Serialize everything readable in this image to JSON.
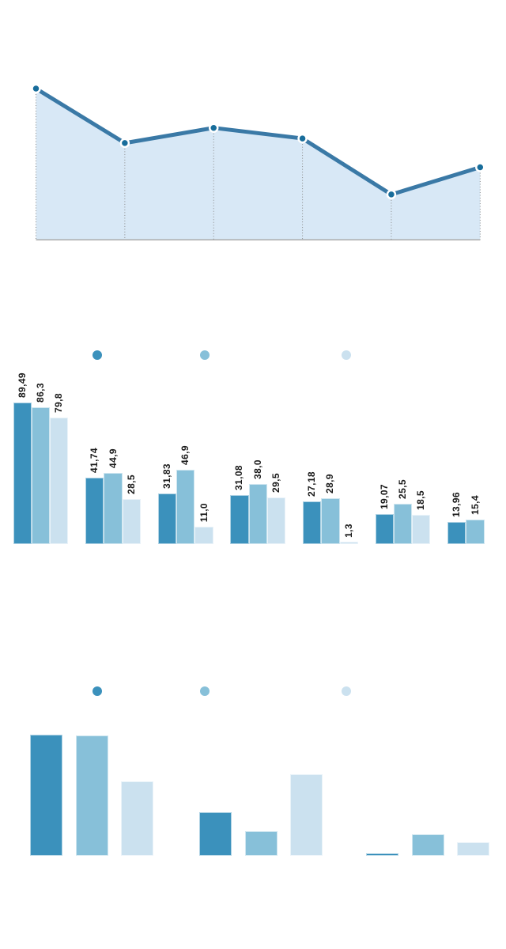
{
  "page": {
    "background": "#ffffff"
  },
  "palette": {
    "series1": "#3b91bc",
    "series2": "#87c0d9",
    "series3": "#cbe1ef",
    "area_fill": "#d8e8f6",
    "area_line": "#3a79a6",
    "marker_fill": "#186d9b",
    "marker_ring": "#ffffff",
    "drop_line": "#8a8a8a",
    "axis_line": "#ababab",
    "label_text": "#1a1a1a"
  },
  "chart_data": [
    {
      "id": "area-trend",
      "type": "area",
      "title": "",
      "xlabel": "",
      "ylabel": "",
      "x": [
        1,
        2,
        3,
        4,
        5,
        6
      ],
      "values": [
        100,
        64,
        74,
        67,
        30,
        48
      ],
      "values_estimated": true,
      "ylim": [
        0,
        100
      ],
      "grid": false,
      "axis_labels_visible": false,
      "markers": true,
      "drop_lines": "dotted"
    },
    {
      "id": "grouped-bars-labeled",
      "type": "bar",
      "title": "",
      "xlabel": "",
      "ylabel": "",
      "categories": [
        "1",
        "2",
        "3",
        "4",
        "5",
        "6",
        "7"
      ],
      "category_labels_visible": false,
      "legend_position": "top",
      "legend_text_visible": false,
      "data_labels_rotated": true,
      "ylim": [
        0,
        90
      ],
      "grid": false,
      "series": [
        {
          "name": "series-1",
          "color": "#3b91bc",
          "values": [
            89.49,
            41.74,
            31.83,
            31.08,
            27.18,
            19.07,
            13.96
          ],
          "data_labels": [
            "89,49",
            "41,74",
            "31,83",
            "31,08",
            "27,18",
            "19,07",
            "13,96"
          ]
        },
        {
          "name": "series-2",
          "color": "#87c0d9",
          "values": [
            86.3,
            44.9,
            46.9,
            38.0,
            28.9,
            25.5,
            15.4
          ],
          "data_labels": [
            "86,3",
            "44,9",
            "46,9",
            "38,0",
            "28,9",
            "25,5",
            "15,4"
          ]
        },
        {
          "name": "series-3",
          "color": "#cbe1ef",
          "values": [
            79.8,
            28.5,
            11.0,
            29.5,
            1.3,
            18.5,
            null
          ],
          "data_labels": [
            "79,8",
            "28,5",
            "11,0",
            "29,5",
            "1,3",
            "18,5",
            null
          ]
        }
      ]
    },
    {
      "id": "grouped-bars-unlabeled",
      "type": "bar",
      "title": "",
      "xlabel": "",
      "ylabel": "",
      "categories": [
        "1",
        "2",
        "3"
      ],
      "category_labels_visible": false,
      "legend_position": "top",
      "legend_text_visible": false,
      "values_estimated": true,
      "ylim": [
        0,
        100
      ],
      "grid": false,
      "series": [
        {
          "name": "series-1",
          "color": "#3b91bc",
          "values": [
            100,
            36,
            2
          ]
        },
        {
          "name": "series-2",
          "color": "#87c0d9",
          "values": [
            99.3,
            20.5,
            17.6
          ]
        },
        {
          "name": "series-3",
          "color": "#cbe1ef",
          "values": [
            61.4,
            67.1,
            11.1
          ]
        }
      ]
    }
  ]
}
